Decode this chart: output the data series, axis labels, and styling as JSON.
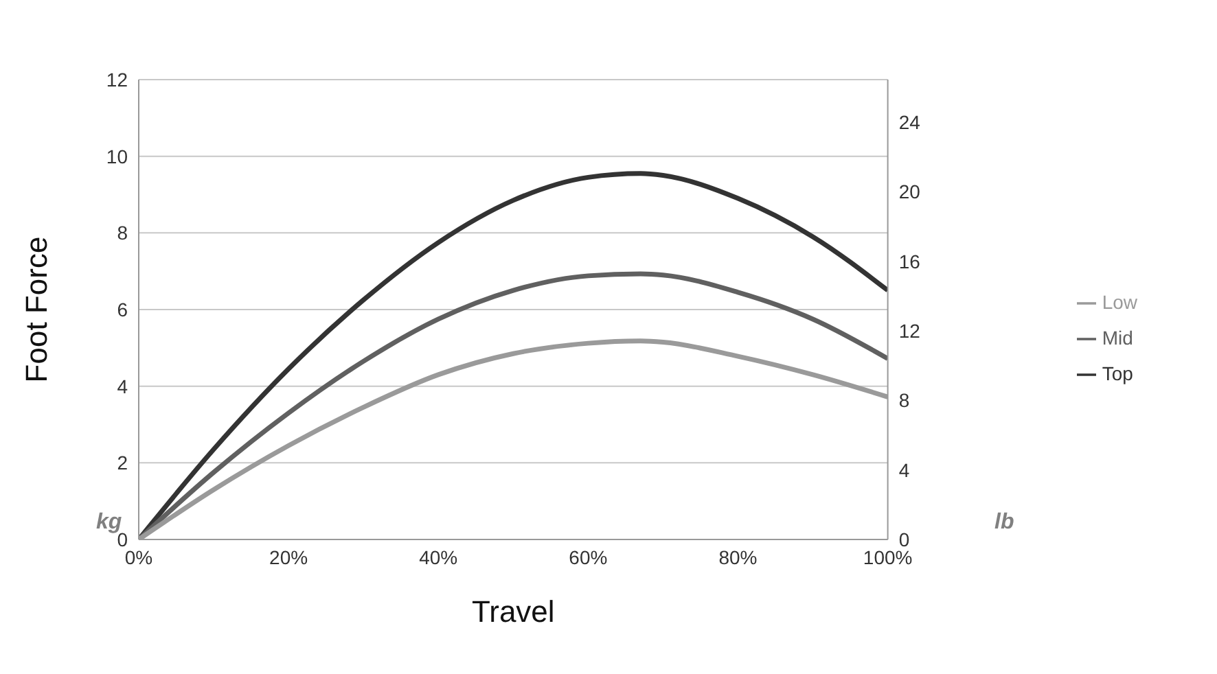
{
  "chart_data": {
    "type": "line",
    "xlabel": "Travel",
    "ylabel": "Foot Force",
    "x": [
      0,
      0.1,
      0.2,
      0.3,
      0.4,
      0.5,
      0.6,
      0.67,
      0.7,
      0.8,
      0.9,
      1
    ],
    "series": [
      {
        "name": "Top",
        "color": "#333333",
        "values": [
          0,
          2.35,
          4.45,
          6.25,
          7.75,
          8.85,
          9.45,
          9.55,
          9.5,
          8.9,
          7.9,
          6.5
        ]
      },
      {
        "name": "Mid",
        "color": "#606060",
        "values": [
          0,
          1.75,
          3.3,
          4.65,
          5.75,
          6.5,
          6.88,
          6.93,
          6.9,
          6.45,
          5.75,
          4.72
        ]
      },
      {
        "name": "Low",
        "color": "#9a9a9a",
        "values": [
          0,
          1.3,
          2.45,
          3.45,
          4.3,
          4.85,
          5.12,
          5.18,
          5.15,
          4.78,
          4.3,
          3.72
        ]
      }
    ],
    "xlim": [
      0,
      1
    ],
    "xticks": [
      {
        "value": 0,
        "label": "0%"
      },
      {
        "value": 0.2,
        "label": "20%"
      },
      {
        "value": 0.4,
        "label": "40%"
      },
      {
        "value": 0.6,
        "label": "60%"
      },
      {
        "value": 0.8,
        "label": "80%"
      },
      {
        "value": 1,
        "label": "100%"
      }
    ],
    "ylim": [
      0,
      12
    ],
    "yticks": [
      0,
      2,
      4,
      6,
      8,
      10,
      12
    ],
    "y2lim": [
      0,
      26.455
    ],
    "y2ticks": [
      0,
      4,
      8,
      12,
      16,
      20,
      24
    ],
    "annotations": [
      "kg",
      "lb"
    ],
    "grid": "y",
    "legend": "right",
    "marker": "none",
    "line_style": "solid"
  }
}
